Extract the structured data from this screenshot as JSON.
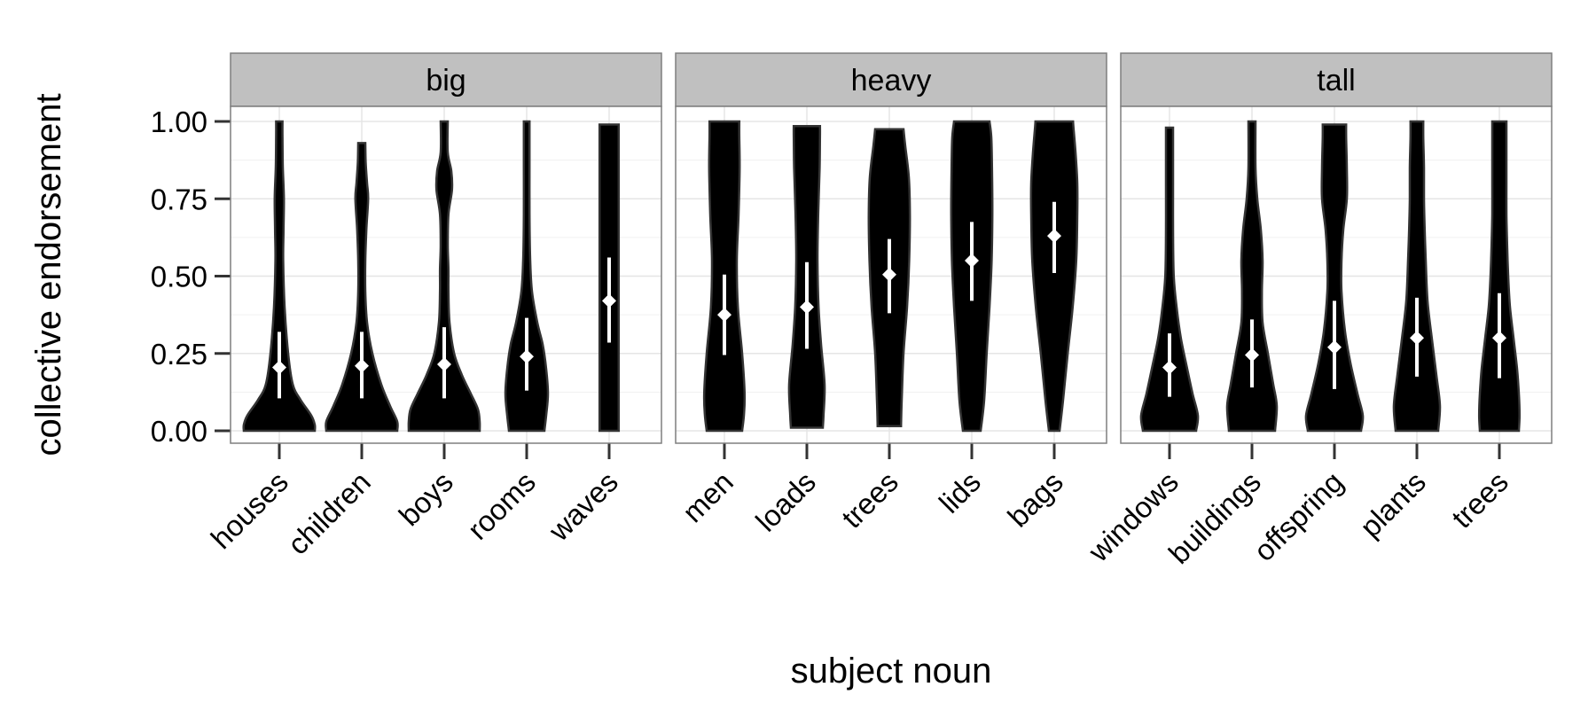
{
  "chart_data": {
    "type": "violin",
    "title": "",
    "xlabel": "subject noun",
    "ylabel": "collective endorsement",
    "ylim": [
      0,
      1
    ],
    "y_ticks": [
      "0.00",
      "0.25",
      "0.50",
      "0.75",
      "1.00"
    ],
    "y_tick_values": [
      0,
      0.25,
      0.5,
      0.75,
      1
    ],
    "grid": true,
    "legend": "none",
    "colors": {
      "violin_fill": "#000000",
      "violin_outline": "#333333",
      "summary": "#ffffff",
      "strip_fill": "#c0c0c0",
      "panel_border": "#7f7f7f",
      "gridline": "#e5e5e5"
    },
    "panels": [
      {
        "facet": "big",
        "categories": [
          {
            "label": "houses",
            "mean": 0.205,
            "ci": [
              0.105,
              0.32
            ],
            "min": 0.0,
            "max": 1.0,
            "density": [
              [
                0.0,
                1.0
              ],
              [
                0.02,
                1.0
              ],
              [
                0.05,
                0.9
              ],
              [
                0.1,
                0.6
              ],
              [
                0.15,
                0.38
              ],
              [
                0.25,
                0.25
              ],
              [
                0.4,
                0.15
              ],
              [
                0.55,
                0.11
              ],
              [
                0.65,
                0.12
              ],
              [
                0.75,
                0.13
              ],
              [
                0.85,
                0.1
              ],
              [
                0.95,
                0.09
              ],
              [
                1.0,
                0.09
              ]
            ]
          },
          {
            "label": "children",
            "mean": 0.21,
            "ci": [
              0.105,
              0.32
            ],
            "min": 0.0,
            "max": 0.93,
            "density": [
              [
                0.0,
                1.0
              ],
              [
                0.03,
                1.0
              ],
              [
                0.08,
                0.8
              ],
              [
                0.15,
                0.55
              ],
              [
                0.25,
                0.3
              ],
              [
                0.35,
                0.15
              ],
              [
                0.45,
                0.1
              ],
              [
                0.55,
                0.1
              ],
              [
                0.65,
                0.13
              ],
              [
                0.75,
                0.18
              ],
              [
                0.8,
                0.15
              ],
              [
                0.87,
                0.11
              ],
              [
                0.93,
                0.1
              ]
            ]
          },
          {
            "label": "boys",
            "mean": 0.215,
            "ci": [
              0.105,
              0.335
            ],
            "min": 0.0,
            "max": 1.0,
            "density": [
              [
                0.0,
                1.0
              ],
              [
                0.03,
                1.0
              ],
              [
                0.07,
                0.95
              ],
              [
                0.12,
                0.75
              ],
              [
                0.18,
                0.5
              ],
              [
                0.25,
                0.28
              ],
              [
                0.35,
                0.15
              ],
              [
                0.45,
                0.12
              ],
              [
                0.52,
                0.12
              ],
              [
                0.6,
                0.1
              ],
              [
                0.7,
                0.12
              ],
              [
                0.78,
                0.22
              ],
              [
                0.84,
                0.2
              ],
              [
                0.9,
                0.1
              ],
              [
                1.0,
                0.1
              ]
            ]
          },
          {
            "label": "rooms",
            "mean": 0.24,
            "ci": [
              0.13,
              0.365
            ],
            "min": 0.0,
            "max": 1.0,
            "density": [
              [
                0.0,
                0.5
              ],
              [
                0.05,
                0.55
              ],
              [
                0.12,
                0.6
              ],
              [
                0.2,
                0.55
              ],
              [
                0.28,
                0.45
              ],
              [
                0.35,
                0.3
              ],
              [
                0.45,
                0.15
              ],
              [
                0.55,
                0.1
              ],
              [
                0.7,
                0.08
              ],
              [
                0.85,
                0.08
              ],
              [
                1.0,
                0.08
              ]
            ]
          },
          {
            "label": "waves",
            "mean": 0.42,
            "ci": [
              0.285,
              0.56
            ],
            "min": 0.0,
            "max": 0.99,
            "density": [
              [
                0.0,
                0.27
              ],
              [
                0.2,
                0.27
              ],
              [
                0.4,
                0.27
              ],
              [
                0.6,
                0.27
              ],
              [
                0.8,
                0.27
              ],
              [
                0.99,
                0.27
              ]
            ]
          }
        ]
      },
      {
        "facet": "heavy",
        "categories": [
          {
            "label": "men",
            "mean": 0.375,
            "ci": [
              0.245,
              0.505
            ],
            "min": 0.0,
            "max": 1.0,
            "density": [
              [
                0.0,
                0.5
              ],
              [
                0.05,
                0.55
              ],
              [
                0.12,
                0.57
              ],
              [
                0.25,
                0.5
              ],
              [
                0.4,
                0.38
              ],
              [
                0.55,
                0.35
              ],
              [
                0.7,
                0.4
              ],
              [
                0.85,
                0.43
              ],
              [
                0.95,
                0.42
              ],
              [
                1.0,
                0.42
              ]
            ]
          },
          {
            "label": "loads",
            "mean": 0.4,
            "ci": [
              0.265,
              0.545
            ],
            "min": 0.01,
            "max": 0.985,
            "density": [
              [
                0.01,
                0.45
              ],
              [
                0.05,
                0.47
              ],
              [
                0.15,
                0.5
              ],
              [
                0.28,
                0.4
              ],
              [
                0.4,
                0.33
              ],
              [
                0.55,
                0.3
              ],
              [
                0.7,
                0.32
              ],
              [
                0.85,
                0.36
              ],
              [
                0.95,
                0.37
              ],
              [
                0.985,
                0.37
              ]
            ]
          },
          {
            "label": "trees",
            "mean": 0.505,
            "ci": [
              0.38,
              0.62
            ],
            "min": 0.015,
            "max": 0.975,
            "density": [
              [
                0.015,
                0.33
              ],
              [
                0.1,
                0.35
              ],
              [
                0.25,
                0.4
              ],
              [
                0.4,
                0.5
              ],
              [
                0.55,
                0.56
              ],
              [
                0.7,
                0.58
              ],
              [
                0.82,
                0.55
              ],
              [
                0.92,
                0.45
              ],
              [
                0.975,
                0.4
              ]
            ]
          },
          {
            "label": "lids",
            "mean": 0.55,
            "ci": [
              0.42,
              0.675
            ],
            "min": 0.0,
            "max": 1.0,
            "density": [
              [
                0.0,
                0.25
              ],
              [
                0.1,
                0.35
              ],
              [
                0.25,
                0.42
              ],
              [
                0.4,
                0.5
              ],
              [
                0.55,
                0.56
              ],
              [
                0.7,
                0.58
              ],
              [
                0.85,
                0.57
              ],
              [
                0.95,
                0.55
              ],
              [
                1.0,
                0.5
              ]
            ]
          },
          {
            "label": "bags",
            "mean": 0.63,
            "ci": [
              0.51,
              0.74
            ],
            "min": 0.0,
            "max": 1.0,
            "density": [
              [
                0.0,
                0.15
              ],
              [
                0.1,
                0.25
              ],
              [
                0.25,
                0.38
              ],
              [
                0.4,
                0.52
              ],
              [
                0.55,
                0.62
              ],
              [
                0.7,
                0.65
              ],
              [
                0.8,
                0.65
              ],
              [
                0.9,
                0.6
              ],
              [
                0.97,
                0.55
              ],
              [
                1.0,
                0.53
              ]
            ]
          }
        ]
      },
      {
        "facet": "tall",
        "categories": [
          {
            "label": "windows",
            "mean": 0.205,
            "ci": [
              0.11,
              0.315
            ],
            "min": 0.0,
            "max": 0.98,
            "density": [
              [
                0.0,
                0.75
              ],
              [
                0.05,
                0.8
              ],
              [
                0.12,
                0.65
              ],
              [
                0.2,
                0.5
              ],
              [
                0.3,
                0.32
              ],
              [
                0.4,
                0.2
              ],
              [
                0.5,
                0.12
              ],
              [
                0.65,
                0.1
              ],
              [
                0.8,
                0.1
              ],
              [
                0.98,
                0.1
              ]
            ]
          },
          {
            "label": "buildings",
            "mean": 0.245,
            "ci": [
              0.14,
              0.36
            ],
            "min": 0.0,
            "max": 1.0,
            "density": [
              [
                0.0,
                0.65
              ],
              [
                0.08,
                0.7
              ],
              [
                0.15,
                0.6
              ],
              [
                0.25,
                0.45
              ],
              [
                0.35,
                0.3
              ],
              [
                0.45,
                0.28
              ],
              [
                0.55,
                0.3
              ],
              [
                0.65,
                0.25
              ],
              [
                0.75,
                0.15
              ],
              [
                0.85,
                0.1
              ],
              [
                1.0,
                0.1
              ]
            ]
          },
          {
            "label": "offspring",
            "mean": 0.27,
            "ci": [
              0.135,
              0.42
            ],
            "min": 0.0,
            "max": 0.99,
            "density": [
              [
                0.0,
                0.75
              ],
              [
                0.05,
                0.8
              ],
              [
                0.12,
                0.65
              ],
              [
                0.22,
                0.45
              ],
              [
                0.32,
                0.3
              ],
              [
                0.45,
                0.2
              ],
              [
                0.55,
                0.2
              ],
              [
                0.65,
                0.25
              ],
              [
                0.75,
                0.35
              ],
              [
                0.85,
                0.35
              ],
              [
                0.95,
                0.33
              ],
              [
                0.99,
                0.33
              ]
            ]
          },
          {
            "label": "plants",
            "mean": 0.3,
            "ci": [
              0.175,
              0.43
            ],
            "min": 0.0,
            "max": 1.0,
            "density": [
              [
                0.0,
                0.6
              ],
              [
                0.08,
                0.65
              ],
              [
                0.18,
                0.55
              ],
              [
                0.3,
                0.42
              ],
              [
                0.42,
                0.3
              ],
              [
                0.55,
                0.25
              ],
              [
                0.65,
                0.22
              ],
              [
                0.75,
                0.2
              ],
              [
                0.85,
                0.2
              ],
              [
                0.95,
                0.18
              ],
              [
                1.0,
                0.18
              ]
            ]
          },
          {
            "label": "trees",
            "mean": 0.3,
            "ci": [
              0.17,
              0.445
            ],
            "min": 0.0,
            "max": 1.0,
            "density": [
              [
                0.0,
                0.55
              ],
              [
                0.05,
                0.57
              ],
              [
                0.12,
                0.55
              ],
              [
                0.2,
                0.5
              ],
              [
                0.3,
                0.4
              ],
              [
                0.4,
                0.3
              ],
              [
                0.5,
                0.25
              ],
              [
                0.6,
                0.22
              ],
              [
                0.7,
                0.2
              ],
              [
                0.8,
                0.2
              ],
              [
                0.9,
                0.2
              ],
              [
                1.0,
                0.2
              ]
            ]
          }
        ]
      }
    ]
  }
}
